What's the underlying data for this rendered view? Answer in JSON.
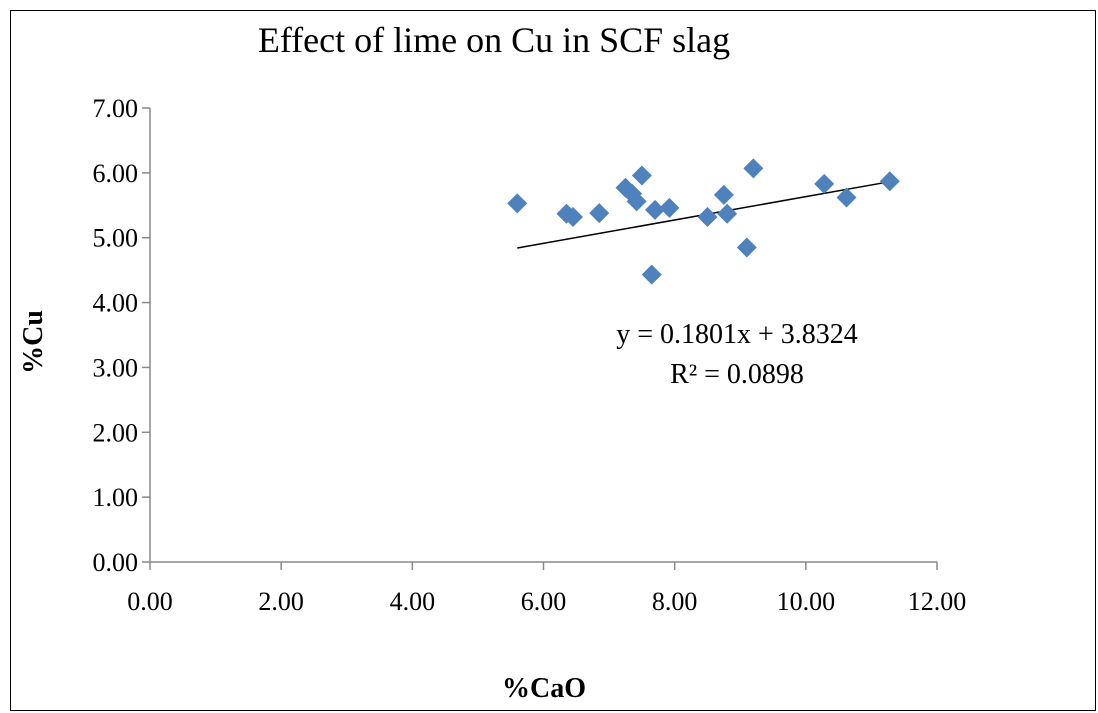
{
  "chart_data": {
    "type": "scatter",
    "title": "Effect of lime on Cu in SCF slag",
    "xlabel": "%CaO",
    "ylabel": "%Cu",
    "xlim": [
      0,
      12
    ],
    "ylim": [
      0,
      7
    ],
    "x_ticks": [
      "0.00",
      "2.00",
      "4.00",
      "6.00",
      "8.00",
      "10.00",
      "12.00"
    ],
    "y_ticks": [
      "0.00",
      "1.00",
      "2.00",
      "3.00",
      "4.00",
      "5.00",
      "6.00",
      "7.00"
    ],
    "marker_color": "#4F81BD",
    "marker_shape": "diamond",
    "points": [
      {
        "x": 5.6,
        "y": 5.53
      },
      {
        "x": 6.35,
        "y": 5.37
      },
      {
        "x": 6.45,
        "y": 5.32
      },
      {
        "x": 6.85,
        "y": 5.38
      },
      {
        "x": 7.25,
        "y": 5.77
      },
      {
        "x": 7.35,
        "y": 5.68
      },
      {
        "x": 7.42,
        "y": 5.56
      },
      {
        "x": 7.5,
        "y": 5.96
      },
      {
        "x": 7.65,
        "y": 4.43
      },
      {
        "x": 7.7,
        "y": 5.43
      },
      {
        "x": 7.92,
        "y": 5.46
      },
      {
        "x": 8.5,
        "y": 5.32
      },
      {
        "x": 8.75,
        "y": 5.66
      },
      {
        "x": 8.8,
        "y": 5.37
      },
      {
        "x": 9.1,
        "y": 4.85
      },
      {
        "x": 9.2,
        "y": 6.07
      },
      {
        "x": 10.28,
        "y": 5.83
      },
      {
        "x": 10.62,
        "y": 5.62
      },
      {
        "x": 11.28,
        "y": 5.87
      }
    ],
    "trendline": {
      "slope": 0.1801,
      "intercept": 3.8324,
      "x_range": [
        5.6,
        11.28
      ],
      "equation_text": "y = 0.1801x + 3.8324",
      "r2_text": "R² = 0.0898"
    },
    "grid": false,
    "legend": "none"
  }
}
